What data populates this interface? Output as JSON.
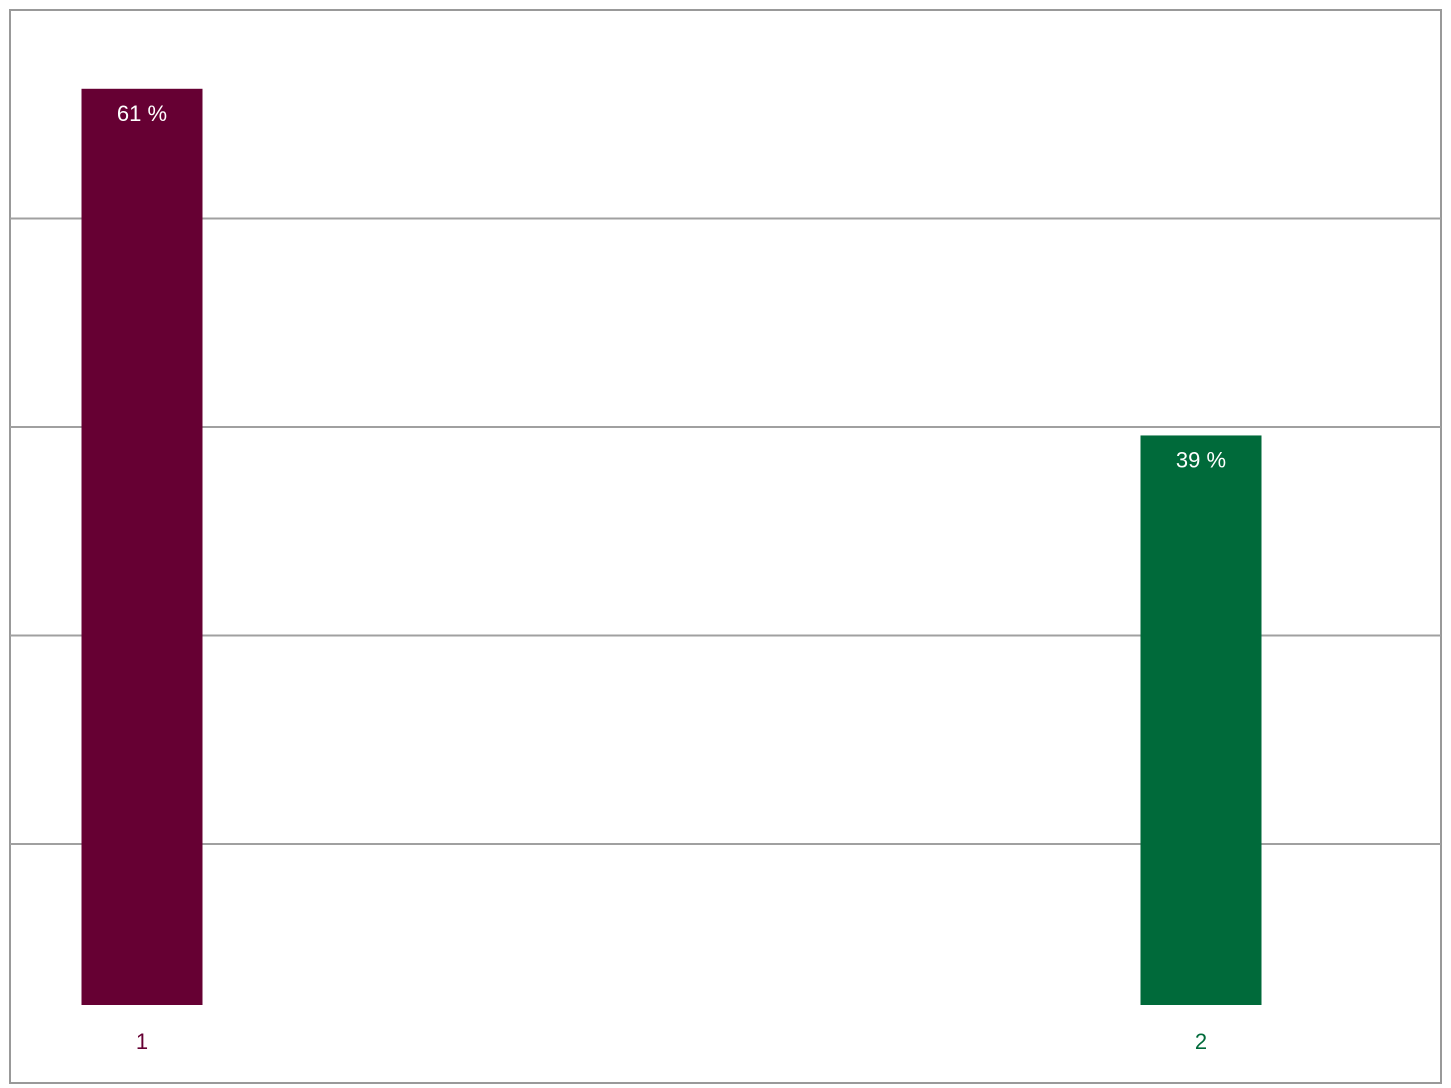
{
  "chart_data": {
    "type": "bar",
    "categories": [
      "1",
      "2"
    ],
    "values": [
      61,
      39
    ],
    "value_labels": [
      "61 %",
      "39 %"
    ],
    "colors": [
      "#660033",
      "#006a3a"
    ],
    "title": "",
    "xlabel": "",
    "ylabel": "",
    "ylim": [
      0,
      66
    ],
    "grid": true,
    "legend": "none"
  }
}
